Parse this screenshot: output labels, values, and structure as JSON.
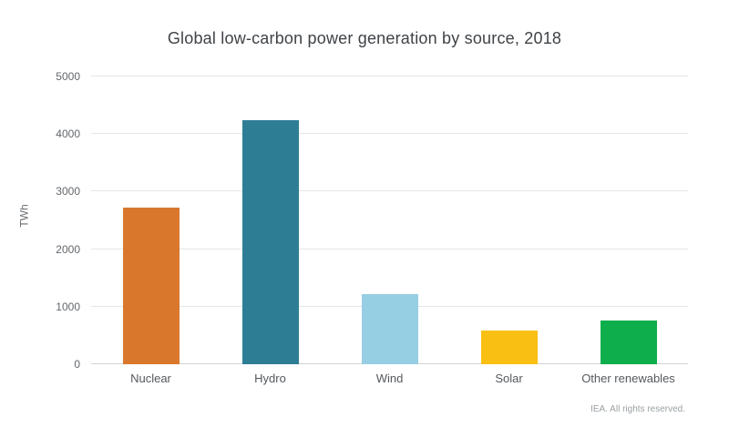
{
  "title": "Global low-carbon power generation by source, 2018",
  "footer": "IEA. All rights reserved.",
  "chart_data": {
    "type": "bar",
    "title": "Global low-carbon power generation by source, 2018",
    "categories": [
      "Nuclear",
      "Hydro",
      "Wind",
      "Solar",
      "Other renewables"
    ],
    "values": [
      2720,
      4240,
      1220,
      580,
      760
    ],
    "colors": [
      "#d9782d",
      "#2d7e95",
      "#96cee3",
      "#f9c013",
      "#0fae4d"
    ],
    "xlabel": "",
    "ylabel": "TWh",
    "ylim": [
      0,
      5000
    ],
    "yticks": [
      0,
      1000,
      2000,
      3000,
      4000,
      5000
    ],
    "grid": true,
    "legend_position": "none"
  }
}
